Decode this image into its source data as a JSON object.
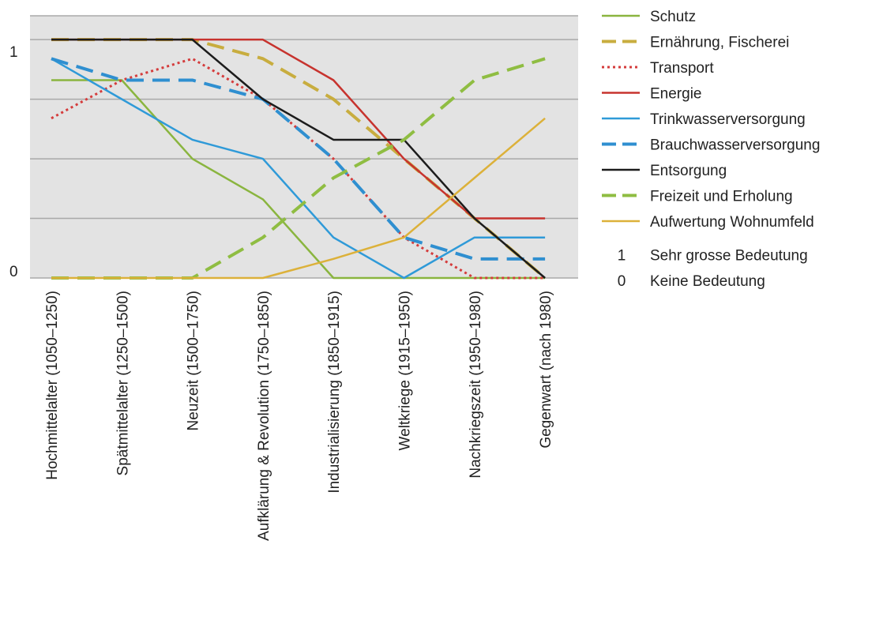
{
  "chart_data": {
    "type": "line",
    "categories": [
      "Hochmittelalter (1050–1250)",
      "Spätmittelalter (1250–1500)",
      "Neuzeit (1500–1750)",
      "Aufklärung & Revolution (1750–1850)",
      "Industrialisierung (1850–1915)",
      "Weltkriege (1915–1950)",
      "Nachkriegszeit (1950–1980)",
      "Gegenwart (nach 1980)"
    ],
    "ylim": [
      0,
      1.1
    ],
    "yticks": [
      {
        "value": 1,
        "label": "1"
      },
      {
        "value": 0,
        "label": "0"
      }
    ],
    "gridlines": [
      0,
      0.25,
      0.5,
      0.75,
      1,
      1.1
    ],
    "grid": true,
    "background_color": "#e3e3e3",
    "grid_color": "#a9a9a9",
    "legend_position": "right",
    "series": [
      {
        "name": "Schutz",
        "color": "#8ab53f",
        "dash": "solid",
        "values": [
          0.83,
          0.83,
          0.5,
          0.33,
          0,
          0,
          0,
          0
        ]
      },
      {
        "name": "Ernährung, Fischerei",
        "color": "#c8ad3f",
        "dash": "dashed",
        "values": [
          1.0,
          1.0,
          1.0,
          0.92,
          0.75,
          0.5,
          0.25,
          0
        ]
      },
      {
        "name": "Transport",
        "color": "#d43c3c",
        "dash": "dotted",
        "values": [
          0.67,
          0.83,
          0.92,
          0.75,
          0.5,
          0.17,
          0,
          0
        ]
      },
      {
        "name": "Energie",
        "color": "#c7332e",
        "dash": "solid",
        "values": [
          1.0,
          1.0,
          1.0,
          1.0,
          0.83,
          0.5,
          0.25,
          0.25
        ]
      },
      {
        "name": "Trinkwasserversorgung",
        "color": "#2f9ad8",
        "dash": "solid",
        "values": [
          0.92,
          0.75,
          0.58,
          0.5,
          0.17,
          0,
          0.17,
          0.17
        ]
      },
      {
        "name": "Brauchwasserversorgung",
        "color": "#2f8fd0",
        "dash": "dashed",
        "values": [
          0.92,
          0.83,
          0.83,
          0.75,
          0.5,
          0.17,
          0.08,
          0.08
        ]
      },
      {
        "name": "Entsorgung",
        "color": "#1c1c1c",
        "dash": "solid",
        "values": [
          1.0,
          1.0,
          1.0,
          0.75,
          0.58,
          0.58,
          0.25,
          0
        ]
      },
      {
        "name": "Freizeit und Erholung",
        "color": "#8fbd42",
        "dash": "dashed",
        "values": [
          0,
          0,
          0,
          0.17,
          0.42,
          0.58,
          0.83,
          0.92
        ]
      },
      {
        "name": "Aufwertung Wohnumfeld",
        "color": "#dcb13a",
        "dash": "solid",
        "values": [
          0,
          0,
          0,
          0,
          0.08,
          0.17,
          0.42,
          0.67
        ]
      }
    ],
    "legend_notes": [
      {
        "symbol": "1",
        "text": "Sehr grosse Bedeutung"
      },
      {
        "symbol": "0",
        "text": "Keine Bedeutung"
      }
    ]
  }
}
